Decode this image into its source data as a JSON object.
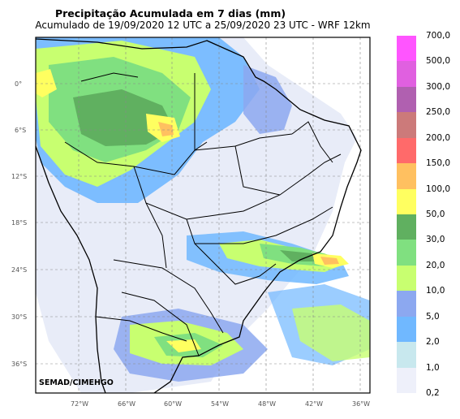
{
  "title": "Precipitação Acumulada em 7 dias (mm)",
  "subtitle": "Acumulado de 19/09/2020 12 UTC a 25/09/2020 23 UTC - WRF 12km",
  "credit": "SEMAD/CIMEHGO",
  "lat_ticks": [
    "0°",
    "6°S",
    "12°S",
    "18°S",
    "24°S",
    "30°S",
    "36°S"
  ],
  "lon_ticks": [
    "72°W",
    "66°W",
    "60°W",
    "54°W",
    "48°W",
    "42°W",
    "36°W"
  ],
  "legend": {
    "labels": [
      "700,0",
      "500,0",
      "300,0",
      "250,0",
      "200,0",
      "150,0",
      "100,0",
      "50,0",
      "30,0",
      "20,0",
      "10,0",
      "5,0",
      "2,0",
      "1,0",
      "0,2"
    ],
    "colors": [
      "#ff55ff",
      "#e060e0",
      "#b060b0",
      "#cc7a7a",
      "#ff6a6a",
      "#ffc060",
      "#ffff60",
      "#60b060",
      "#80e080",
      "#c8ff70",
      "#8ca8f0",
      "#70b8ff",
      "#c8e8ee",
      "#eef0fa"
    ]
  },
  "colors": {
    "light": "#e8ecf8",
    "blue": "#70b0ff",
    "lightgreen": "#c8ff70",
    "green": "#80e080",
    "darkgreen": "#60b060",
    "yellow": "#ffff60",
    "orange": "#ffc060"
  }
}
